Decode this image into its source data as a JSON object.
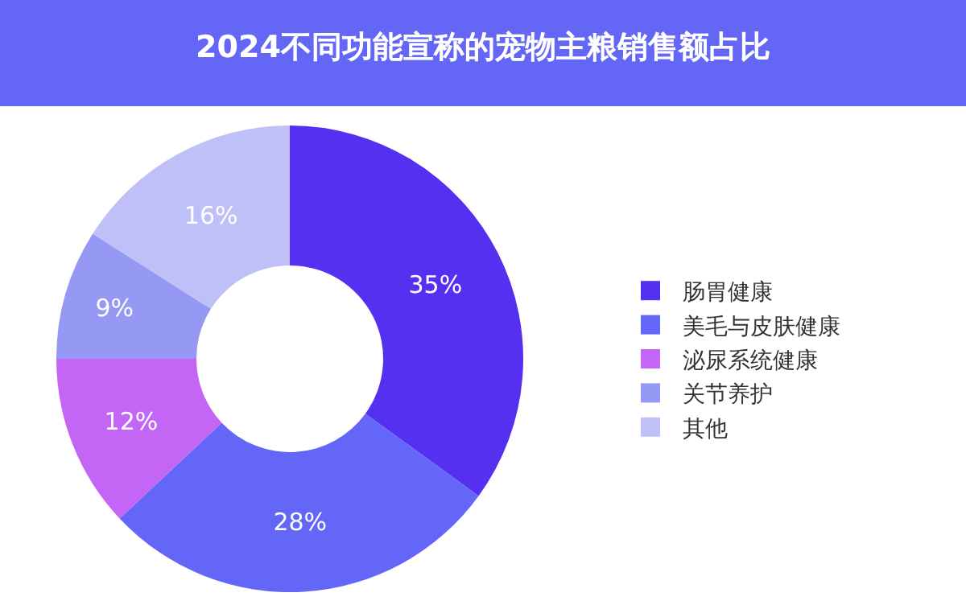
{
  "chart_data": {
    "type": "donut",
    "title": "2024不同功能宣称的宠物主粮销售额占比",
    "categories": [
      "肠胃健康",
      "美毛与皮肤健康",
      "泌尿系统健康",
      "关节养护",
      "其他"
    ],
    "values": [
      35,
      28,
      12,
      9,
      16
    ],
    "value_labels": [
      "35%",
      "28%",
      "12%",
      "9%",
      "16%"
    ],
    "colors": [
      "#5530f0",
      "#6466f8",
      "#c466f5",
      "#9599f3",
      "#bfc0f7"
    ],
    "legend": "right"
  }
}
